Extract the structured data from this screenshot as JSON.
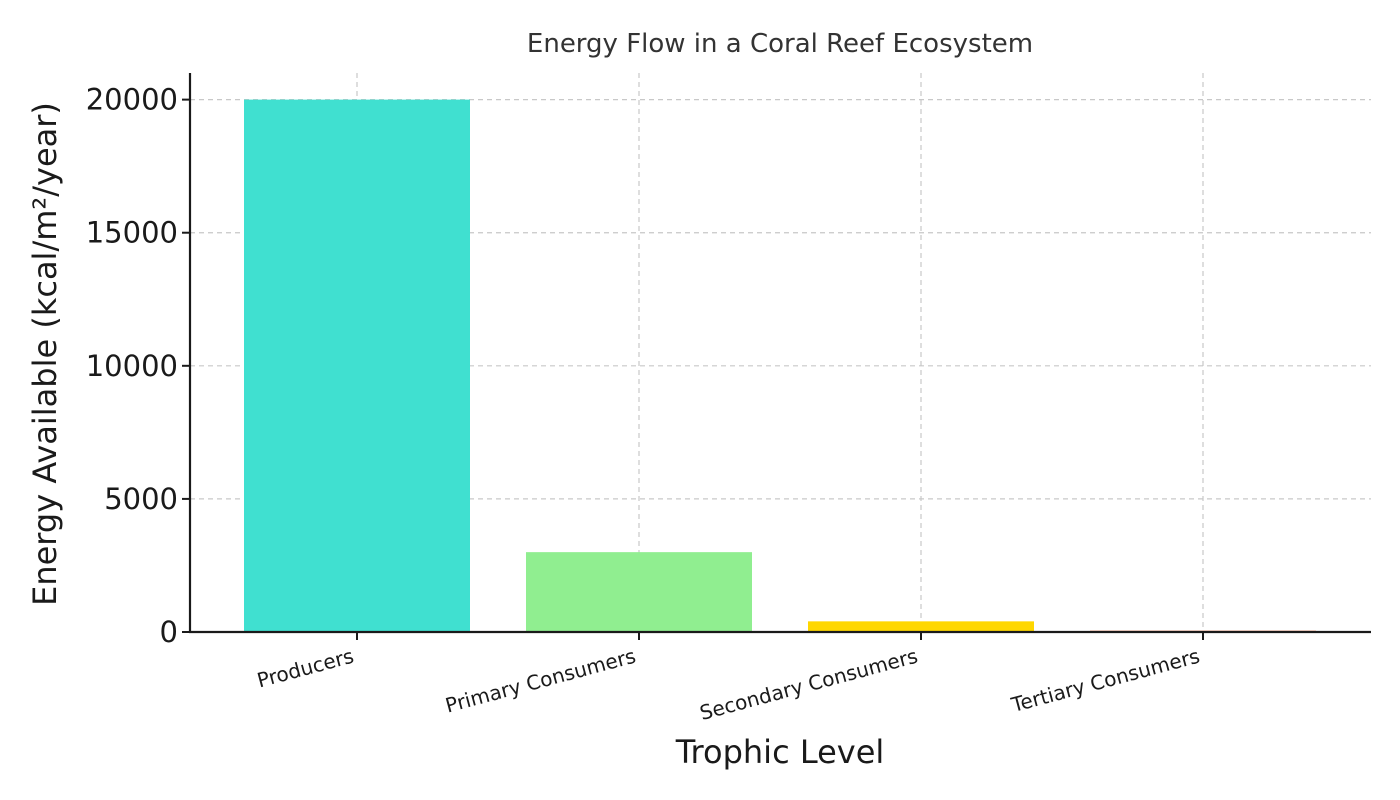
{
  "chart_data": {
    "type": "bar",
    "title": "Energy Flow in a Coral Reef Ecosystem",
    "xlabel": "Trophic Level",
    "ylabel": "Energy Available (kcal/m²/year)",
    "categories": [
      "Producers",
      "Primary Consumers",
      "Secondary Consumers",
      "Tertiary Consumers"
    ],
    "values": [
      20000,
      3000,
      400,
      50
    ],
    "colors": [
      "#40e0d0",
      "#90ee90",
      "#ffd700",
      "#ff7f50"
    ],
    "ylim": [
      0,
      21000
    ],
    "yticks": [
      0,
      5000,
      10000,
      15000,
      20000
    ],
    "grid": true,
    "legend": "none"
  }
}
